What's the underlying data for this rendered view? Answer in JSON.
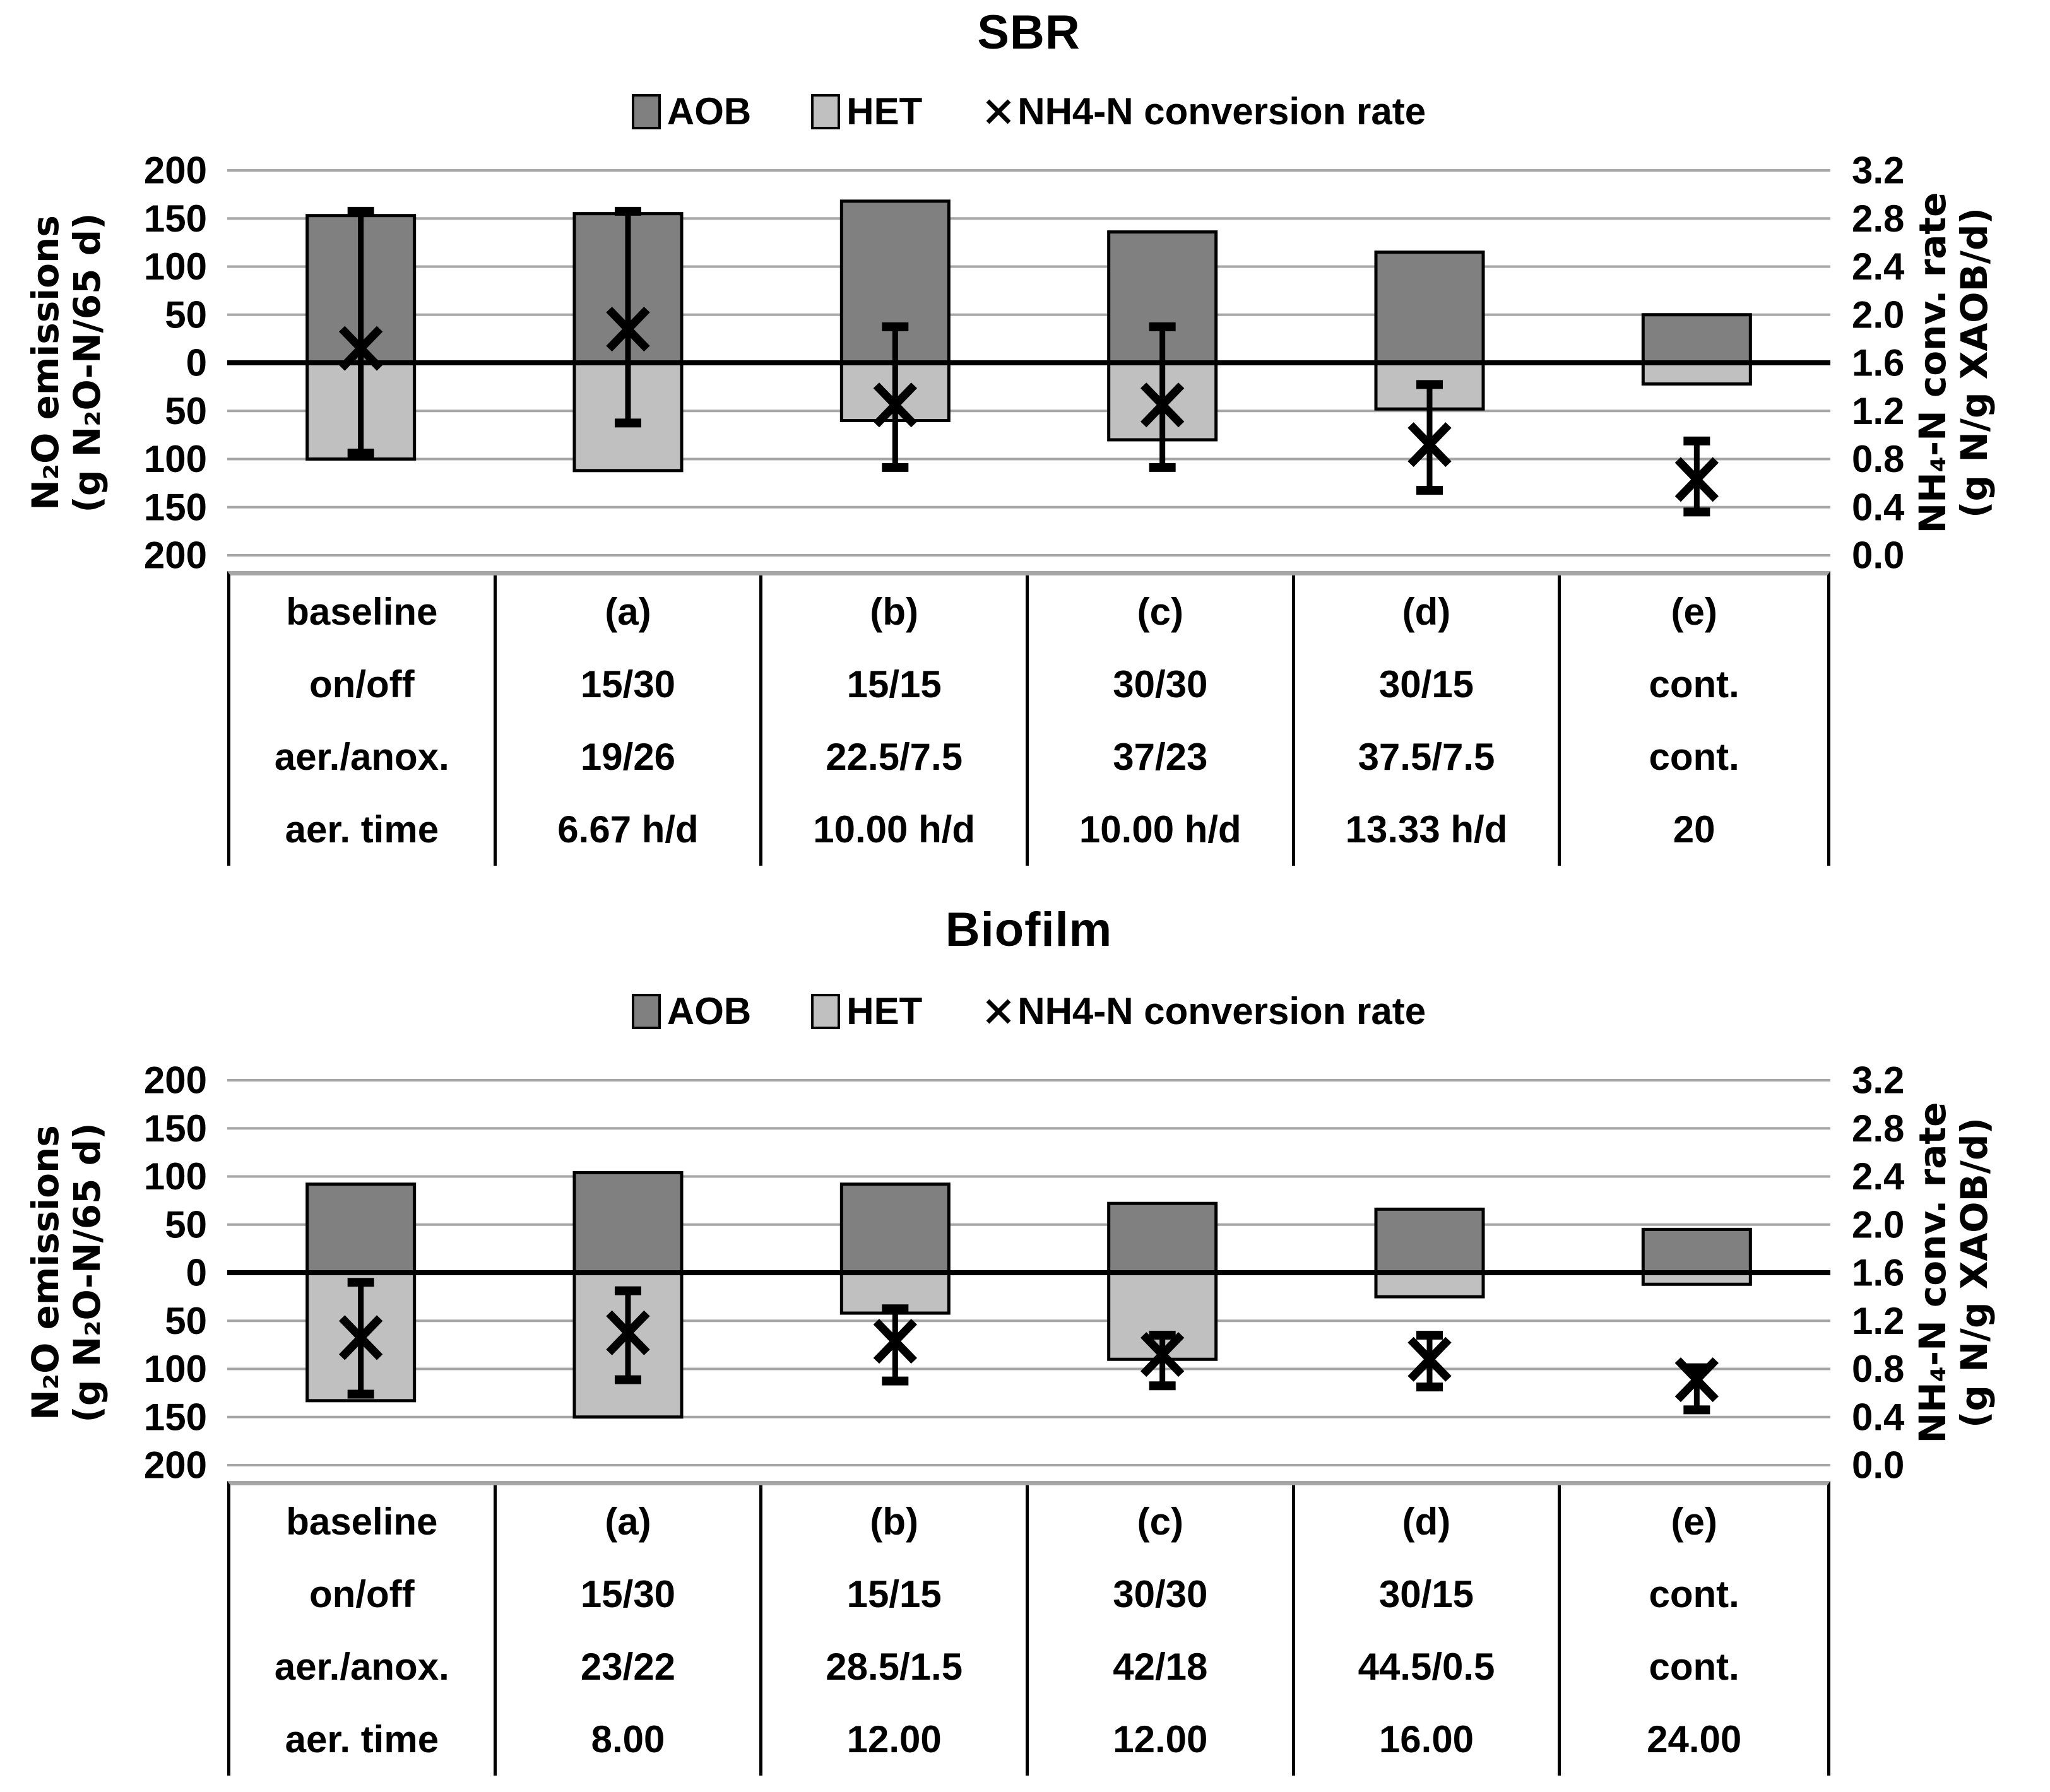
{
  "colors": {
    "aob_fill": "#808080",
    "het_fill": "#c0c0c0",
    "gridline": "#a6a6a6",
    "axis_line": "#000000",
    "bar_border": "#000000",
    "background": "#ffffff"
  },
  "charts": [
    {
      "title": "SBR",
      "legend": {
        "aob": "AOB",
        "het": "HET",
        "x": "NH4-N conversion rate"
      },
      "left_axis": {
        "title_line1": "N₂O emissions",
        "title_line2": "(g N₂O-N/65 d)",
        "ticks": [
          "200",
          "150",
          "100",
          "50",
          "0",
          "50",
          "100",
          "150",
          "200"
        ]
      },
      "right_axis": {
        "title_line1": "NH₄-N conv. rate",
        "title_line2": "(g N/g XAOB/d)",
        "ticks": [
          "3.2",
          "2.8",
          "2.4",
          "2.0",
          "1.6",
          "1.2",
          "0.8",
          "0.4",
          "0.0"
        ]
      },
      "chart_data": {
        "type": "bar",
        "categories": [
          "baseline",
          "(a)",
          "(b)",
          "(c)",
          "(d)",
          "(e)"
        ],
        "series": [
          {
            "name": "AOB",
            "axis": "left",
            "values": [
              153,
              155,
              168,
              136,
              115,
              50
            ]
          },
          {
            "name": "HET",
            "axis": "left",
            "values": [
              -100,
              -112,
              -60,
              -80,
              -48,
              -22
            ]
          }
        ],
        "markers": {
          "name": "NH4-N conversion rate",
          "axis": "right",
          "symbol": "x",
          "values": [
            1.72,
            1.88,
            1.25,
            1.25,
            0.92,
            0.63
          ],
          "err_high": [
            2.86,
            2.86,
            1.9,
            1.9,
            1.42,
            0.95
          ],
          "err_low": [
            0.85,
            1.1,
            0.73,
            0.73,
            0.54,
            0.36
          ]
        },
        "left_axis_range": [
          -200,
          200
        ],
        "right_axis_range": [
          0,
          3.2
        ],
        "grid": true,
        "legend_position": "top"
      },
      "table": {
        "rows": [
          [
            "baseline",
            "(a)",
            "(b)",
            "(c)",
            "(d)",
            "(e)"
          ],
          [
            "on/off",
            "15/30",
            "15/15",
            "30/30",
            "30/15",
            "cont."
          ],
          [
            "aer./anox.",
            "19/26",
            "22.5/7.5",
            "37/23",
            "37.5/7.5",
            "cont."
          ],
          [
            "aer. time",
            "6.67 h/d",
            "10.00 h/d",
            "10.00 h/d",
            "13.33 h/d",
            "20"
          ]
        ]
      }
    },
    {
      "title": "Biofilm",
      "legend": {
        "aob": "AOB",
        "het": "HET",
        "x": "NH4-N conversion rate"
      },
      "left_axis": {
        "title_line1": "N₂O emissions",
        "title_line2": "(g N₂O-N/65 d)",
        "ticks": [
          "200",
          "150",
          "100",
          "50",
          "0",
          "50",
          "100",
          "150",
          "200"
        ]
      },
      "right_axis": {
        "title_line1": "NH₄-N conv. rate",
        "title_line2": "(g N/g XAOB/d)",
        "ticks": [
          "3.2",
          "2.8",
          "2.4",
          "2.0",
          "1.6",
          "1.2",
          "0.8",
          "0.4",
          "0.0"
        ]
      },
      "chart_data": {
        "type": "bar",
        "categories": [
          "baseline",
          "(a)",
          "(b)",
          "(c)",
          "(d)",
          "(e)"
        ],
        "series": [
          {
            "name": "AOB",
            "axis": "left",
            "values": [
              92,
              104,
              92,
              72,
              66,
              45
            ]
          },
          {
            "name": "HET",
            "axis": "left",
            "values": [
              -133,
              -150,
              -42,
              -90,
              -25,
              -12
            ]
          }
        ],
        "markers": {
          "name": "NH4-N conversion rate",
          "axis": "right",
          "symbol": "x",
          "values": [
            1.06,
            1.1,
            1.03,
            0.92,
            0.88,
            0.71
          ],
          "err_high": [
            1.52,
            1.45,
            1.3,
            1.08,
            1.08,
            0.81
          ],
          "err_low": [
            0.59,
            0.71,
            0.7,
            0.66,
            0.65,
            0.46
          ]
        },
        "left_axis_range": [
          -200,
          200
        ],
        "right_axis_range": [
          0,
          3.2
        ],
        "grid": true,
        "legend_position": "top"
      },
      "table": {
        "rows": [
          [
            "baseline",
            "(a)",
            "(b)",
            "(c)",
            "(d)",
            "(e)"
          ],
          [
            "on/off",
            "15/30",
            "15/15",
            "30/30",
            "30/15",
            "cont."
          ],
          [
            "aer./anox.",
            "23/22",
            "28.5/1.5",
            "42/18",
            "44.5/0.5",
            "cont."
          ],
          [
            "aer. time",
            "8.00",
            "12.00",
            "12.00",
            "16.00",
            "24.00"
          ]
        ]
      }
    }
  ]
}
